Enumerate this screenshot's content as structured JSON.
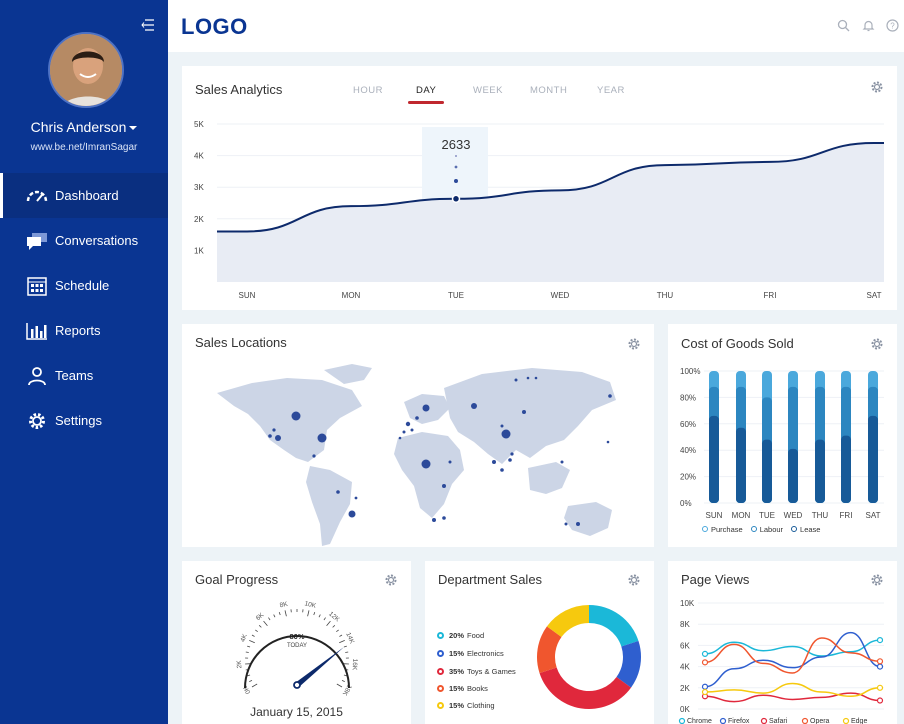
{
  "sidebar": {
    "user_name": "Chris Anderson",
    "user_url": "www.be.net/ImranSagar",
    "items": [
      {
        "label": "Dashboard"
      },
      {
        "label": "Conversations"
      },
      {
        "label": "Schedule"
      },
      {
        "label": "Reports"
      },
      {
        "label": "Teams"
      },
      {
        "label": "Settings"
      }
    ]
  },
  "topbar": {
    "logo": "LOGO"
  },
  "sales_analytics": {
    "title": "Sales Analytics",
    "tabs": [
      "HOUR",
      "DAY",
      "WEEK",
      "MONTH",
      "YEAR"
    ],
    "active_tab": "DAY",
    "tooltip_value": "2633",
    "y_ticks": [
      "5K",
      "4K",
      "3K",
      "2K",
      "1K"
    ],
    "x_ticks": [
      "SUN",
      "MON",
      "TUE",
      "WED",
      "THU",
      "FRI",
      "SAT"
    ]
  },
  "sales_locations": {
    "title": "Sales Locations"
  },
  "cost_of_goods": {
    "title": "Cost of Goods Sold",
    "y_ticks": [
      "100%",
      "80%",
      "60%",
      "40%",
      "20%",
      "0%"
    ],
    "x_ticks": [
      "SUN",
      "MON",
      "TUE",
      "WED",
      "THU",
      "FRI",
      "SAT"
    ],
    "legend": [
      "Purchase",
      "Labour",
      "Lease"
    ]
  },
  "goal_progress": {
    "title": "Goal Progress",
    "value_label": "80%",
    "sub_label": "TODAY",
    "date": "January 15, 2015",
    "scale": [
      "0K",
      "2K",
      "4K",
      "6K",
      "8K",
      "10K",
      "12K",
      "14K",
      "16K",
      "18K"
    ]
  },
  "department_sales": {
    "title": "Department Sales",
    "items": [
      {
        "pct": "20%",
        "name": "Food"
      },
      {
        "pct": "15%",
        "name": "Electronics"
      },
      {
        "pct": "35%",
        "name": "Toys & Games"
      },
      {
        "pct": "15%",
        "name": "Books"
      },
      {
        "pct": "15%",
        "name": "Clothing"
      }
    ]
  },
  "page_views": {
    "title": "Page Views",
    "y_ticks": [
      "10K",
      "8K",
      "6K",
      "4K",
      "2K",
      "0K"
    ],
    "legend": [
      "Chrome",
      "Firefox",
      "Safari",
      "Opera",
      "Edge"
    ]
  },
  "colors": {
    "brand": "#0a3592",
    "accent_red": "#c0282f",
    "chart_line": "#0d2a6b",
    "chart_fill": "#e8ecf4"
  },
  "chart_data": [
    {
      "type": "area",
      "title": "Sales Analytics",
      "x": [
        "SUN",
        "MON",
        "TUE",
        "WED",
        "THU",
        "FRI",
        "SAT"
      ],
      "ylim": [
        0,
        5000
      ],
      "series": [
        {
          "values": [
            1600,
            2400,
            2633,
            2900,
            3700,
            3800,
            4400
          ]
        }
      ]
    },
    {
      "type": "bar",
      "title": "Cost of Goods Sold",
      "categories": [
        "SUN",
        "MON",
        "TUE",
        "WED",
        "THU",
        "FRI",
        "SAT"
      ],
      "ylim": [
        0,
        100
      ],
      "series": [
        {
          "name": "Purchase",
          "values": [
            100,
            100,
            100,
            100,
            100,
            100,
            100
          ]
        },
        {
          "name": "Labour",
          "values": [
            88,
            88,
            80,
            88,
            88,
            88,
            88
          ]
        },
        {
          "name": "Lease",
          "values": [
            66,
            57,
            48,
            41,
            48,
            51,
            66
          ]
        }
      ]
    },
    {
      "type": "pie",
      "title": "Department Sales",
      "categories": [
        "Food",
        "Electronics",
        "Toys & Games",
        "Books",
        "Clothing"
      ],
      "values": [
        20,
        15,
        35,
        15,
        15
      ]
    },
    {
      "type": "line",
      "title": "Page Views",
      "ylim": [
        0,
        10000
      ],
      "series": [
        {
          "name": "Chrome",
          "values": [
            5200,
            6300,
            5500,
            5900,
            5000,
            5400,
            6500
          ]
        },
        {
          "name": "Firefox",
          "values": [
            2100,
            3800,
            4600,
            3900,
            4900,
            7200,
            4000
          ]
        },
        {
          "name": "Safari",
          "values": [
            1200,
            700,
            1300,
            900,
            1100,
            1500,
            800
          ]
        },
        {
          "name": "Opera",
          "values": [
            4400,
            6100,
            4300,
            3400,
            6700,
            5300,
            4500
          ]
        },
        {
          "name": "Edge",
          "values": [
            1600,
            1800,
            1500,
            2400,
            1600,
            1200,
            2000
          ]
        }
      ]
    }
  ]
}
